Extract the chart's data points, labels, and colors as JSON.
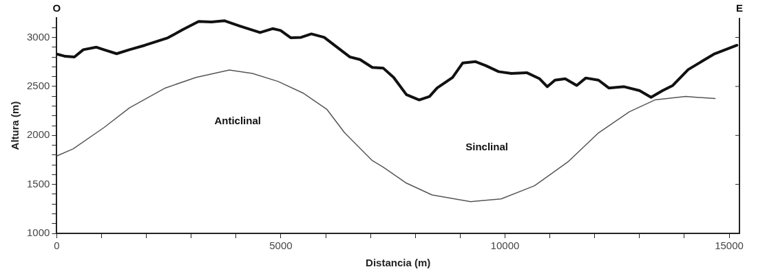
{
  "chart_data": {
    "type": "line",
    "xlabel": "Distancia (m)",
    "ylabel": "Altura (m)",
    "xlim": [
      0,
      15230
    ],
    "ylim": [
      1000,
      3200
    ],
    "xticks": [
      0,
      {
        "value": 1000,
        "label": null
      },
      {
        "value": 2000,
        "label": null
      },
      {
        "value": 3000,
        "label": null
      },
      {
        "value": 4000,
        "label": null
      },
      5000,
      {
        "value": 6000,
        "label": null
      },
      {
        "value": 7000,
        "label": null
      },
      {
        "value": 8000,
        "label": null
      },
      {
        "value": 9000,
        "label": null
      },
      10000,
      {
        "value": 11000,
        "label": null
      },
      {
        "value": 12000,
        "label": null
      },
      {
        "value": 13000,
        "label": null
      },
      {
        "value": 14000,
        "label": null
      },
      15000
    ],
    "yticks": [
      1000,
      {
        "value": 1100,
        "label": null
      },
      {
        "value": 1200,
        "label": null
      },
      {
        "value": 1300,
        "label": null
      },
      {
        "value": 1400,
        "label": null
      },
      1500,
      {
        "value": 1600,
        "label": null
      },
      {
        "value": 1700,
        "label": null
      },
      {
        "value": 1800,
        "label": null
      },
      {
        "value": 1900,
        "label": null
      },
      2000,
      {
        "value": 2100,
        "label": null
      },
      {
        "value": 2200,
        "label": null
      },
      {
        "value": 2300,
        "label": null
      },
      {
        "value": 2400,
        "label": null
      },
      2500,
      {
        "value": 2600,
        "label": null
      },
      {
        "value": 2700,
        "label": null
      },
      {
        "value": 2800,
        "label": null
      },
      {
        "value": 2900,
        "label": null
      },
      3000,
      {
        "value": 3100,
        "label": null
      }
    ],
    "grid": false,
    "legend": false,
    "marker": "none",
    "line_style": "solid",
    "series": [
      {
        "color": "#111111",
        "x": [
          0,
          194,
          394,
          594,
          880,
          1051,
          1337,
          1623,
          1966,
          2480,
          2823,
          3166,
          3451,
          3737,
          4080,
          4537,
          4823,
          4994,
          5223,
          5451,
          5680,
          5966,
          6251,
          6537,
          6766,
          7040,
          7286,
          7515,
          7801,
          8086,
          8315,
          8486,
          8830,
          9058,
          9344,
          9572,
          9858,
          10144,
          10486,
          10773,
          10944,
          11115,
          11344,
          11600,
          11802,
          12086,
          12315,
          12658,
          13002,
          13258,
          13515,
          13744,
          14086,
          14658,
          15173
        ],
        "values": [
          2830,
          2807,
          2801,
          2875,
          2901,
          2875,
          2834,
          2875,
          2920,
          2996,
          3082,
          3163,
          3158,
          3171,
          3117,
          3050,
          3090,
          3071,
          2996,
          3001,
          3036,
          3001,
          2901,
          2801,
          2774,
          2694,
          2686,
          2592,
          2416,
          2362,
          2397,
          2484,
          2592,
          2740,
          2753,
          2712,
          2651,
          2632,
          2640,
          2578,
          2497,
          2564,
          2578,
          2510,
          2586,
          2564,
          2484,
          2497,
          2457,
          2389,
          2457,
          2510,
          2672,
          2829,
          2920
        ]
      },
      {
        "color": "#555555",
        "x": [
          0,
          366,
          1051,
          1623,
          2423,
          3109,
          3851,
          4366,
          4937,
          5509,
          6023,
          6423,
          7040,
          7286,
          7801,
          8373,
          9230,
          9915,
          10658,
          11402,
          12086,
          12773,
          13344,
          14030,
          14686
        ],
        "values": [
          1790,
          1863,
          2079,
          2281,
          2484,
          2592,
          2667,
          2632,
          2551,
          2429,
          2268,
          2026,
          1743,
          1675,
          1513,
          1392,
          1324,
          1352,
          1486,
          1729,
          2026,
          2241,
          2362,
          2397,
          2376
        ]
      }
    ],
    "annotations": [
      "Anticlinal",
      "Sinclinal",
      "O",
      "E"
    ]
  }
}
